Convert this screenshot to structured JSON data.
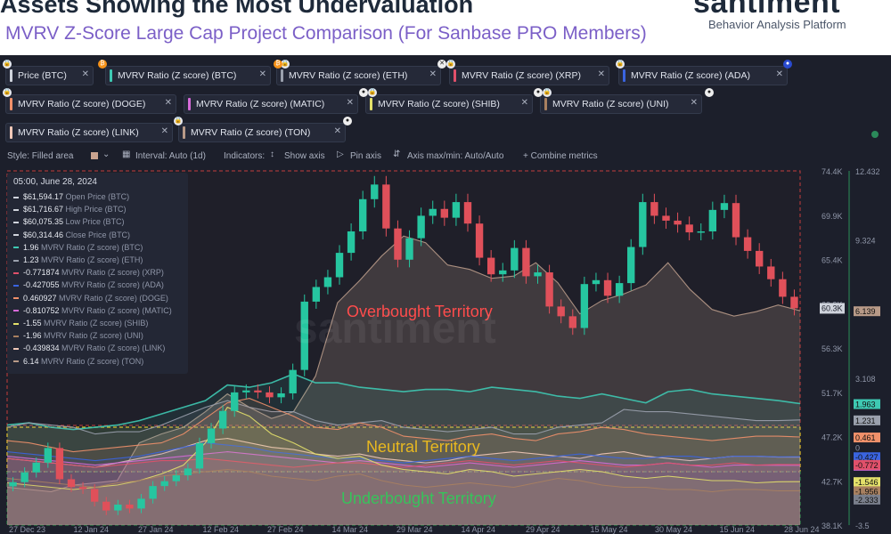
{
  "header": {
    "title": "Assets Showing the Most Undervaluation",
    "subtitle": "MVRV Z-Score Large Cap Project Comparison (For Sanbase PRO Members)",
    "logo": "santiment",
    "tagline": "Behavior Analysis Platform"
  },
  "metrics": [
    {
      "label": "Price (BTC)",
      "color": "#cfd3dc"
    },
    {
      "label": "MVRV Ratio (Z score) (BTC)",
      "color": "#3ec9b3"
    },
    {
      "label": "MVRV Ratio (Z score) (ETH)",
      "color": "#9aa0ad"
    },
    {
      "label": "MVRV Ratio (Z score) (XRP)",
      "color": "#e0506a"
    },
    {
      "label": "MVRV Ratio (Z score) (ADA)",
      "color": "#3a64e0"
    },
    {
      "label": "MVRV Ratio (Z score) (DOGE)",
      "color": "#f0906a"
    },
    {
      "label": "MVRV Ratio (Z score) (MATIC)",
      "color": "#d66ad8"
    },
    {
      "label": "MVRV Ratio (Z score) (SHIB)",
      "color": "#e3e06a"
    },
    {
      "label": "MVRV Ratio (Z score) (UNI)",
      "color": "#a88060"
    },
    {
      "label": "MVRV Ratio (Z score) (LINK)",
      "color": "#f0c8b8"
    },
    {
      "label": "MVRV Ratio (Z score) (TON)",
      "color": "#b89a88"
    }
  ],
  "toolbar": {
    "style": "Style: Filled area",
    "interval": "Interval: Auto (1d)",
    "indicators": "Indicators:",
    "show_axis": "Show axis",
    "pin_axis": "Pin axis",
    "axis_maxmin": "Axis max/min: Auto/Auto",
    "combine": "+ Combine metrics"
  },
  "tooltip": {
    "date": "05:00, June 28, 2024",
    "rows": [
      {
        "value": "$61,594.17",
        "label": "Open Price (BTC)",
        "color": "#cfd3dc"
      },
      {
        "value": "$61,716.67",
        "label": "High Price (BTC)",
        "color": "#cfd3dc"
      },
      {
        "value": "$60,075.35",
        "label": "Low Price (BTC)",
        "color": "#cfd3dc"
      },
      {
        "value": "$60,314.46",
        "label": "Close Price (BTC)",
        "color": "#cfd3dc"
      },
      {
        "value": "1.96",
        "label": "MVRV Ratio (Z score) (BTC)",
        "color": "#3ec9b3"
      },
      {
        "value": "1.23",
        "label": "MVRV Ratio (Z score) (ETH)",
        "color": "#9aa0ad"
      },
      {
        "value": "-0.771874",
        "label": "MVRV Ratio (Z score) (XRP)",
        "color": "#e0506a"
      },
      {
        "value": "-0.427055",
        "label": "MVRV Ratio (Z score) (ADA)",
        "color": "#3a64e0"
      },
      {
        "value": "0.460927",
        "label": "MVRV Ratio (Z score) (DOGE)",
        "color": "#f0906a"
      },
      {
        "value": "-0.810752",
        "label": "MVRV Ratio (Z score) (MATIC)",
        "color": "#d66ad8"
      },
      {
        "value": "-1.55",
        "label": "MVRV Ratio (Z score) (SHIB)",
        "color": "#e3e06a"
      },
      {
        "value": "-1.96",
        "label": "MVRV Ratio (Z score) (UNI)",
        "color": "#a88060"
      },
      {
        "value": "-0.439834",
        "label": "MVRV Ratio (Z score) (LINK)",
        "color": "#f0c8b8"
      },
      {
        "value": "6.14",
        "label": "MVRV Ratio (Z score) (TON)",
        "color": "#b89a88"
      }
    ]
  },
  "zones": {
    "overbought": "Overbought Territory",
    "neutral": "Neutral Territory",
    "underbought": "Underbought Territory"
  },
  "watermark": "santiment",
  "chart_data": {
    "type": "line",
    "x_ticks": [
      "27 Dec 23",
      "12 Jan 24",
      "27 Jan 24",
      "12 Feb 24",
      "27 Feb 24",
      "14 Mar 24",
      "29 Mar 24",
      "14 Apr 24",
      "29 Apr 24",
      "15 May 24",
      "30 May 24",
      "15 Jun 24",
      "28 Jun 24"
    ],
    "y_price_ticks": [
      "74.4K",
      "69.9K",
      "65.4K",
      "60.9K",
      "56.3K",
      "51.7K",
      "47.2K",
      "42.7K",
      "38.1K"
    ],
    "y_price_range": [
      38100,
      74400
    ],
    "y_z_ticks": [
      "12.432",
      "9.324",
      "3.108",
      "0",
      "-3.5"
    ],
    "y_z_range": [
      -3.5,
      12.432
    ],
    "btc_price": [
      42500,
      43500,
      44500,
      46000,
      42800,
      42000,
      41800,
      40500,
      39600,
      40200,
      39800,
      40800,
      42100,
      42600,
      43200,
      43900,
      46500,
      48000,
      49800,
      51700,
      51900,
      51700,
      51200,
      51600,
      54000,
      61000,
      62500,
      63500,
      66000,
      68200,
      71500,
      73000,
      68500,
      65300,
      67500,
      69800,
      70500,
      69600,
      71200,
      69000,
      65500,
      63800,
      64200,
      66500,
      63600,
      64000,
      60500,
      59500,
      58300,
      62800,
      63200,
      61600,
      62900,
      66600,
      71200,
      69800,
      69300,
      68900,
      68100,
      68200,
      70400,
      71100,
      67600,
      66200,
      64600,
      63300,
      61500,
      60314.46
    ],
    "current_price_label": "60.3K",
    "series_right_labels": [
      {
        "text": "6.139",
        "color": "#b89a88"
      },
      {
        "text": "1.963",
        "color": "#3ec9b3"
      },
      {
        "text": "1.231",
        "color": "#9aa0ad"
      },
      {
        "text": "0.461",
        "color": "#f0906a"
      },
      {
        "text": "-0.44",
        "color": "#f0c8b8"
      },
      {
        "text": "-0.427",
        "color": "#3a64e0"
      },
      {
        "text": "-0.81",
        "color": "#d66ad8"
      },
      {
        "text": "-0.772",
        "color": "#e0506a"
      },
      {
        "text": "-1.546",
        "color": "#e3e06a"
      },
      {
        "text": "-1.956",
        "color": "#a88060"
      },
      {
        "text": "-2.333",
        "color": "#7a7f8c"
      }
    ],
    "mvrv_z": {
      "TON": [
        -1.8,
        -1.9,
        -2.0,
        -1.7,
        -1.6,
        -1.5,
        0.2,
        0.6,
        0.9,
        1.6,
        2.4,
        1.8,
        1.3,
        1.6,
        3.2,
        6.5,
        7.5,
        8.6,
        9.5,
        9.2,
        8.2,
        8.0,
        7.6,
        7.7,
        8.3,
        7.4,
        6.0,
        6.6,
        6.9,
        7.3,
        8.3,
        7.1,
        6.2,
        5.9,
        6.1,
        6.4,
        6.139
      ],
      "BTC": [
        1.0,
        1.1,
        0.9,
        0.8,
        0.9,
        1.0,
        1.2,
        1.5,
        1.8,
        2.1,
        2.8,
        2.7,
        2.9,
        3.3,
        2.9,
        2.9,
        2.7,
        2.6,
        2.5,
        2.6,
        2.6,
        2.5,
        2.7,
        2.6,
        2.5,
        2.3,
        2.2,
        2.4,
        2.2,
        2.0,
        2.5,
        2.6,
        2.4,
        2.3,
        2.2,
        2.1,
        1.963
      ],
      "ETH": [
        0.9,
        1.1,
        1.0,
        0.9,
        0.6,
        0.7,
        0.7,
        1.0,
        1.4,
        1.8,
        2.1,
        1.8,
        1.6,
        1.6,
        1.2,
        1.0,
        1.1,
        1.2,
        0.9,
        0.8,
        0.7,
        0.8,
        0.9,
        0.6,
        0.6,
        0.9,
        1.0,
        1.1,
        1.7,
        1.6,
        1.6,
        1.5,
        1.4,
        1.3,
        1.2,
        1.2,
        1.231
      ],
      "DOGE": [
        0.3,
        0.2,
        0.0,
        -0.2,
        -0.1,
        0.0,
        0.1,
        0.2,
        0.6,
        1.3,
        2.0,
        2.2,
        1.8,
        1.4,
        0.9,
        0.8,
        1.1,
        0.9,
        0.5,
        0.4,
        0.3,
        0.5,
        0.6,
        0.4,
        0.3,
        0.6,
        0.7,
        0.9,
        0.8,
        0.6,
        0.5,
        0.4,
        0.3,
        0.4,
        0.5,
        0.5,
        0.461
      ],
      "LINK": [
        -0.5,
        -0.6,
        -0.7,
        -0.8,
        -0.9,
        -0.7,
        -0.5,
        -0.3,
        0.0,
        0.3,
        0.4,
        0.2,
        0.0,
        -0.1,
        -0.3,
        -0.4,
        -0.3,
        -0.5,
        -0.6,
        -0.7,
        -0.6,
        -0.4,
        -0.3,
        -0.2,
        -0.3,
        -0.4,
        -0.5,
        -0.3,
        -0.2,
        -0.4,
        -0.5,
        -0.6,
        -0.5,
        -0.4,
        -0.4,
        -0.44,
        -0.44
      ],
      "ADA": [
        -0.2,
        -0.3,
        -0.4,
        -0.5,
        -0.6,
        -0.5,
        -0.4,
        -0.2,
        0.0,
        0.2,
        0.1,
        0.0,
        -0.2,
        -0.3,
        -0.4,
        -0.5,
        -0.5,
        -0.6,
        -0.7,
        -0.6,
        -0.5,
        -0.4,
        -0.5,
        -0.6,
        -0.5,
        -0.4,
        -0.3,
        -0.4,
        -0.5,
        -0.5,
        -0.4,
        -0.4,
        -0.5,
        -0.4,
        -0.4,
        -0.43,
        -0.427
      ],
      "MATIC": [
        -0.4,
        -0.5,
        -0.6,
        -0.7,
        -0.8,
        -0.7,
        -0.6,
        -0.5,
        -0.4,
        -0.3,
        -0.2,
        -0.3,
        -0.4,
        -0.5,
        -0.6,
        -0.7,
        -0.6,
        -0.7,
        -0.8,
        -0.9,
        -0.8,
        -0.7,
        -0.8,
        -0.9,
        -0.8,
        -0.7,
        -0.6,
        -0.7,
        -0.8,
        -0.8,
        -0.7,
        -0.8,
        -0.9,
        -0.8,
        -0.8,
        -0.81,
        -0.81
      ],
      "XRP": [
        -0.5,
        -0.6,
        -0.7,
        -0.8,
        -0.9,
        -0.8,
        -0.7,
        -0.6,
        -0.6,
        -0.5,
        -0.6,
        -0.7,
        -0.8,
        -0.9,
        -0.8,
        -0.7,
        -0.7,
        -0.8,
        -0.9,
        -0.8,
        -0.7,
        -0.6,
        -0.7,
        -0.8,
        -0.7,
        -0.6,
        -0.7,
        -0.8,
        -0.9,
        -0.8,
        -0.7,
        -0.8,
        -0.8,
        -0.7,
        -0.8,
        -0.77,
        -0.772
      ],
      "SHIB": [
        -1.6,
        -1.7,
        -1.8,
        -1.9,
        -1.8,
        -1.7,
        -1.5,
        -1.2,
        -0.8,
        0.2,
        1.8,
        1.4,
        0.6,
        0.2,
        -0.3,
        -0.5,
        -0.4,
        -0.8,
        -1.0,
        -1.1,
        -1.2,
        -1.0,
        -1.1,
        -1.3,
        -1.2,
        -1.1,
        -1.0,
        -1.1,
        -1.3,
        -1.4,
        -1.3,
        -1.4,
        -1.5,
        -1.5,
        -1.6,
        -1.55,
        -1.546
      ],
      "UNI": [
        -1.4,
        -1.5,
        -1.6,
        -1.7,
        -1.8,
        -1.6,
        -1.5,
        -1.3,
        -1.2,
        -1.1,
        -1.0,
        -1.1,
        -1.3,
        -1.4,
        -1.5,
        -1.3,
        -1.2,
        -1.5,
        -1.7,
        -1.8,
        -1.7,
        -1.6,
        -1.7,
        -1.8,
        -1.6,
        -1.4,
        -1.5,
        -1.7,
        -1.8,
        -1.8,
        -1.9,
        -1.9,
        -2.0,
        -1.9,
        -1.9,
        -1.96,
        -1.956
      ]
    }
  }
}
